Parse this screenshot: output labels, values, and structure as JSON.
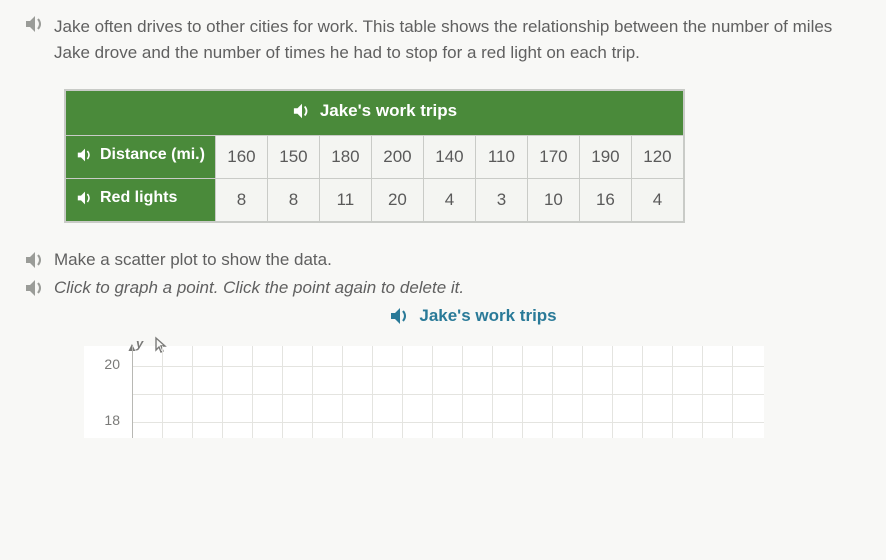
{
  "intro": "Jake often drives to other cities for work. This table shows the relationship between the number of miles Jake drove and the number of times he had to stop for a red light on each trip.",
  "table": {
    "title": "Jake's work trips",
    "row_headers": [
      "Distance (mi.)",
      "Red lights"
    ],
    "header_bg": "#4a8a3a",
    "header_fg": "#ffffff",
    "cell_bg": "#f4f5f2",
    "border_color": "#c9cbc7",
    "columns": [
      "160",
      "150",
      "180",
      "200",
      "140",
      "110",
      "170",
      "190",
      "120"
    ],
    "rows": [
      [
        "160",
        "150",
        "180",
        "200",
        "140",
        "110",
        "170",
        "190",
        "120"
      ],
      [
        "8",
        "8",
        "11",
        "20",
        "4",
        "3",
        "10",
        "16",
        "4"
      ]
    ]
  },
  "instr1": "Make a scatter plot to show the data.",
  "instr2": "Click to graph a point. Click the point again to delete it.",
  "chart": {
    "title": "Jake's work trips",
    "title_color": "#2a7a98",
    "y_letter": "y",
    "y_ticks": [
      {
        "label": "20",
        "top": 18
      },
      {
        "label": "18",
        "top": 74
      }
    ],
    "grid_color": "#e4e4e0",
    "axis_color": "#b8b8b4",
    "bg": "#ffffff",
    "vgrid_start": 48,
    "vgrid_step": 30,
    "vgrid_count": 21,
    "hgrid_tops": [
      20,
      48,
      76
    ]
  },
  "icons": {
    "audio_white": "#ffffff",
    "audio_gray": "#9a9c98",
    "audio_teal": "#2a7a98"
  }
}
